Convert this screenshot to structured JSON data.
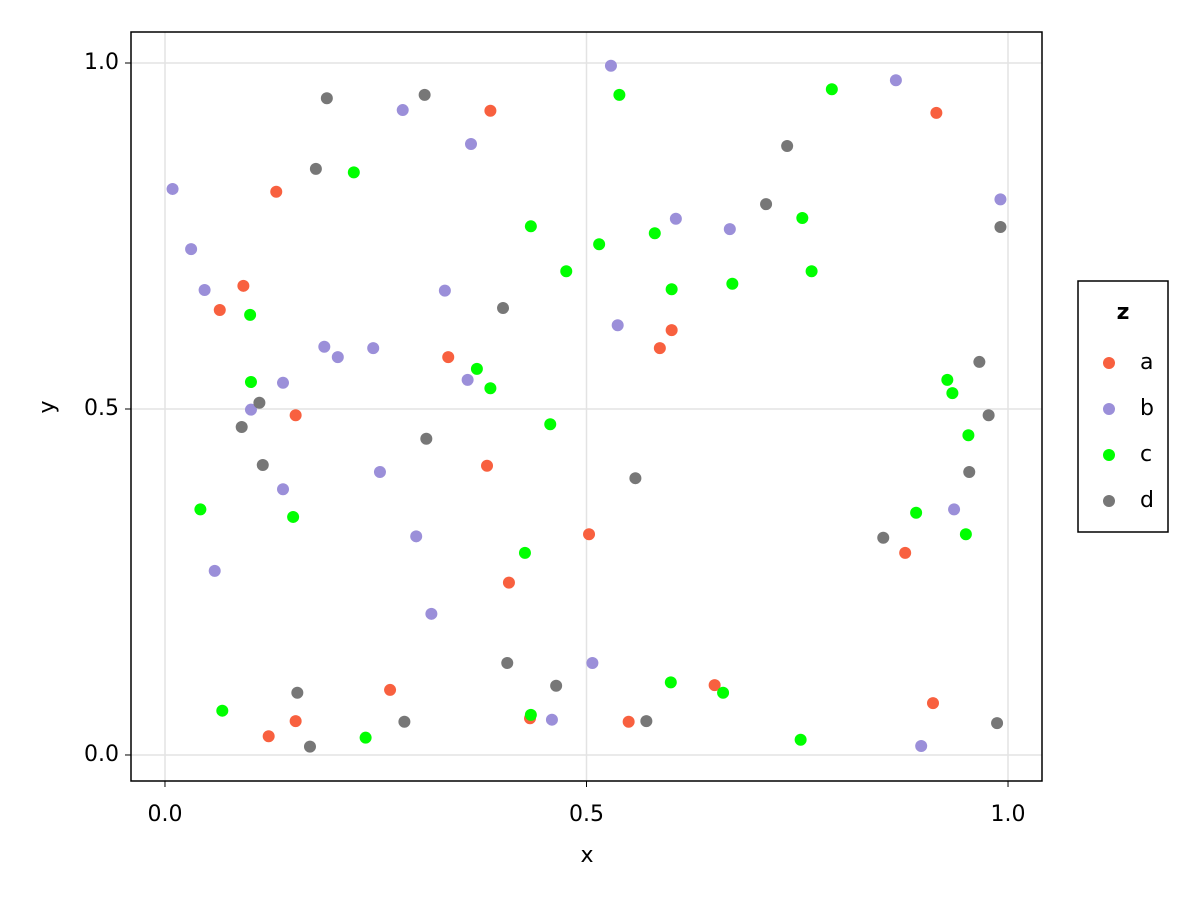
{
  "chart_data": {
    "type": "scatter",
    "xlabel": "x",
    "ylabel": "y",
    "xlim": [
      -0.0403,
      1.0403
    ],
    "ylim": [
      -0.0376,
      1.0448
    ],
    "xticks": [
      {
        "value": 0,
        "label": "0.0"
      },
      0.5,
      {
        "value": 1,
        "label": "1.0"
      }
    ],
    "yticks": [
      {
        "value": 0,
        "label": "0.0"
      },
      0.5,
      {
        "value": 1,
        "label": "1.0"
      }
    ],
    "grid": true,
    "legend_title": "z",
    "legend": "right",
    "series": [
      {
        "name": "a",
        "color": "#f8603f",
        "x": [
          0.132,
          0.093,
          0.065,
          0.155,
          0.336,
          0.386,
          0.382,
          0.408,
          0.503,
          0.601,
          0.587,
          0.55,
          0.652,
          0.433,
          0.267,
          0.155,
          0.123,
          0.878,
          0.915,
          0.911
        ],
        "y": [
          0.814,
          0.678,
          0.643,
          0.491,
          0.575,
          0.931,
          0.418,
          0.249,
          0.319,
          0.614,
          0.588,
          0.048,
          0.101,
          0.053,
          0.094,
          0.049,
          0.027,
          0.292,
          0.928,
          0.075
        ]
      },
      {
        "name": "b",
        "color": "#9b8fd9",
        "x": [
          0.009,
          0.031,
          0.047,
          0.102,
          0.14,
          0.14,
          0.059,
          0.189,
          0.205,
          0.247,
          0.255,
          0.332,
          0.359,
          0.363,
          0.282,
          0.298,
          0.316,
          0.459,
          0.529,
          0.537,
          0.606,
          0.67,
          0.507,
          0.867,
          0.991,
          0.936,
          0.897
        ],
        "y": [
          0.818,
          0.731,
          0.672,
          0.499,
          0.538,
          0.384,
          0.266,
          0.59,
          0.575,
          0.588,
          0.409,
          0.671,
          0.542,
          0.883,
          0.932,
          0.316,
          0.204,
          0.051,
          0.996,
          0.621,
          0.775,
          0.76,
          0.133,
          0.975,
          0.803,
          0.355,
          0.013
        ]
      },
      {
        "name": "c",
        "color": "#00ff00",
        "x": [
          0.224,
          0.101,
          0.102,
          0.042,
          0.152,
          0.068,
          0.238,
          0.37,
          0.386,
          0.434,
          0.457,
          0.476,
          0.515,
          0.539,
          0.581,
          0.601,
          0.427,
          0.434,
          0.6,
          0.662,
          0.673,
          0.756,
          0.767,
          0.791,
          0.754,
          0.928,
          0.934,
          0.953,
          0.891,
          0.95
        ],
        "y": [
          0.842,
          0.636,
          0.539,
          0.355,
          0.344,
          0.064,
          0.025,
          0.558,
          0.53,
          0.764,
          0.478,
          0.699,
          0.738,
          0.954,
          0.754,
          0.673,
          0.292,
          0.058,
          0.105,
          0.09,
          0.681,
          0.776,
          0.699,
          0.962,
          0.022,
          0.542,
          0.523,
          0.462,
          0.35,
          0.319
        ]
      },
      {
        "name": "d",
        "color": "#777777",
        "x": [
          0.192,
          0.179,
          0.308,
          0.401,
          0.31,
          0.112,
          0.091,
          0.116,
          0.157,
          0.172,
          0.284,
          0.406,
          0.464,
          0.558,
          0.571,
          0.713,
          0.738,
          0.852,
          0.966,
          0.977,
          0.954,
          0.991,
          0.987
        ],
        "y": [
          0.949,
          0.847,
          0.954,
          0.646,
          0.457,
          0.509,
          0.474,
          0.419,
          0.09,
          0.012,
          0.048,
          0.133,
          0.1,
          0.4,
          0.049,
          0.796,
          0.88,
          0.314,
          0.568,
          0.491,
          0.409,
          0.763,
          0.046
        ]
      }
    ]
  }
}
